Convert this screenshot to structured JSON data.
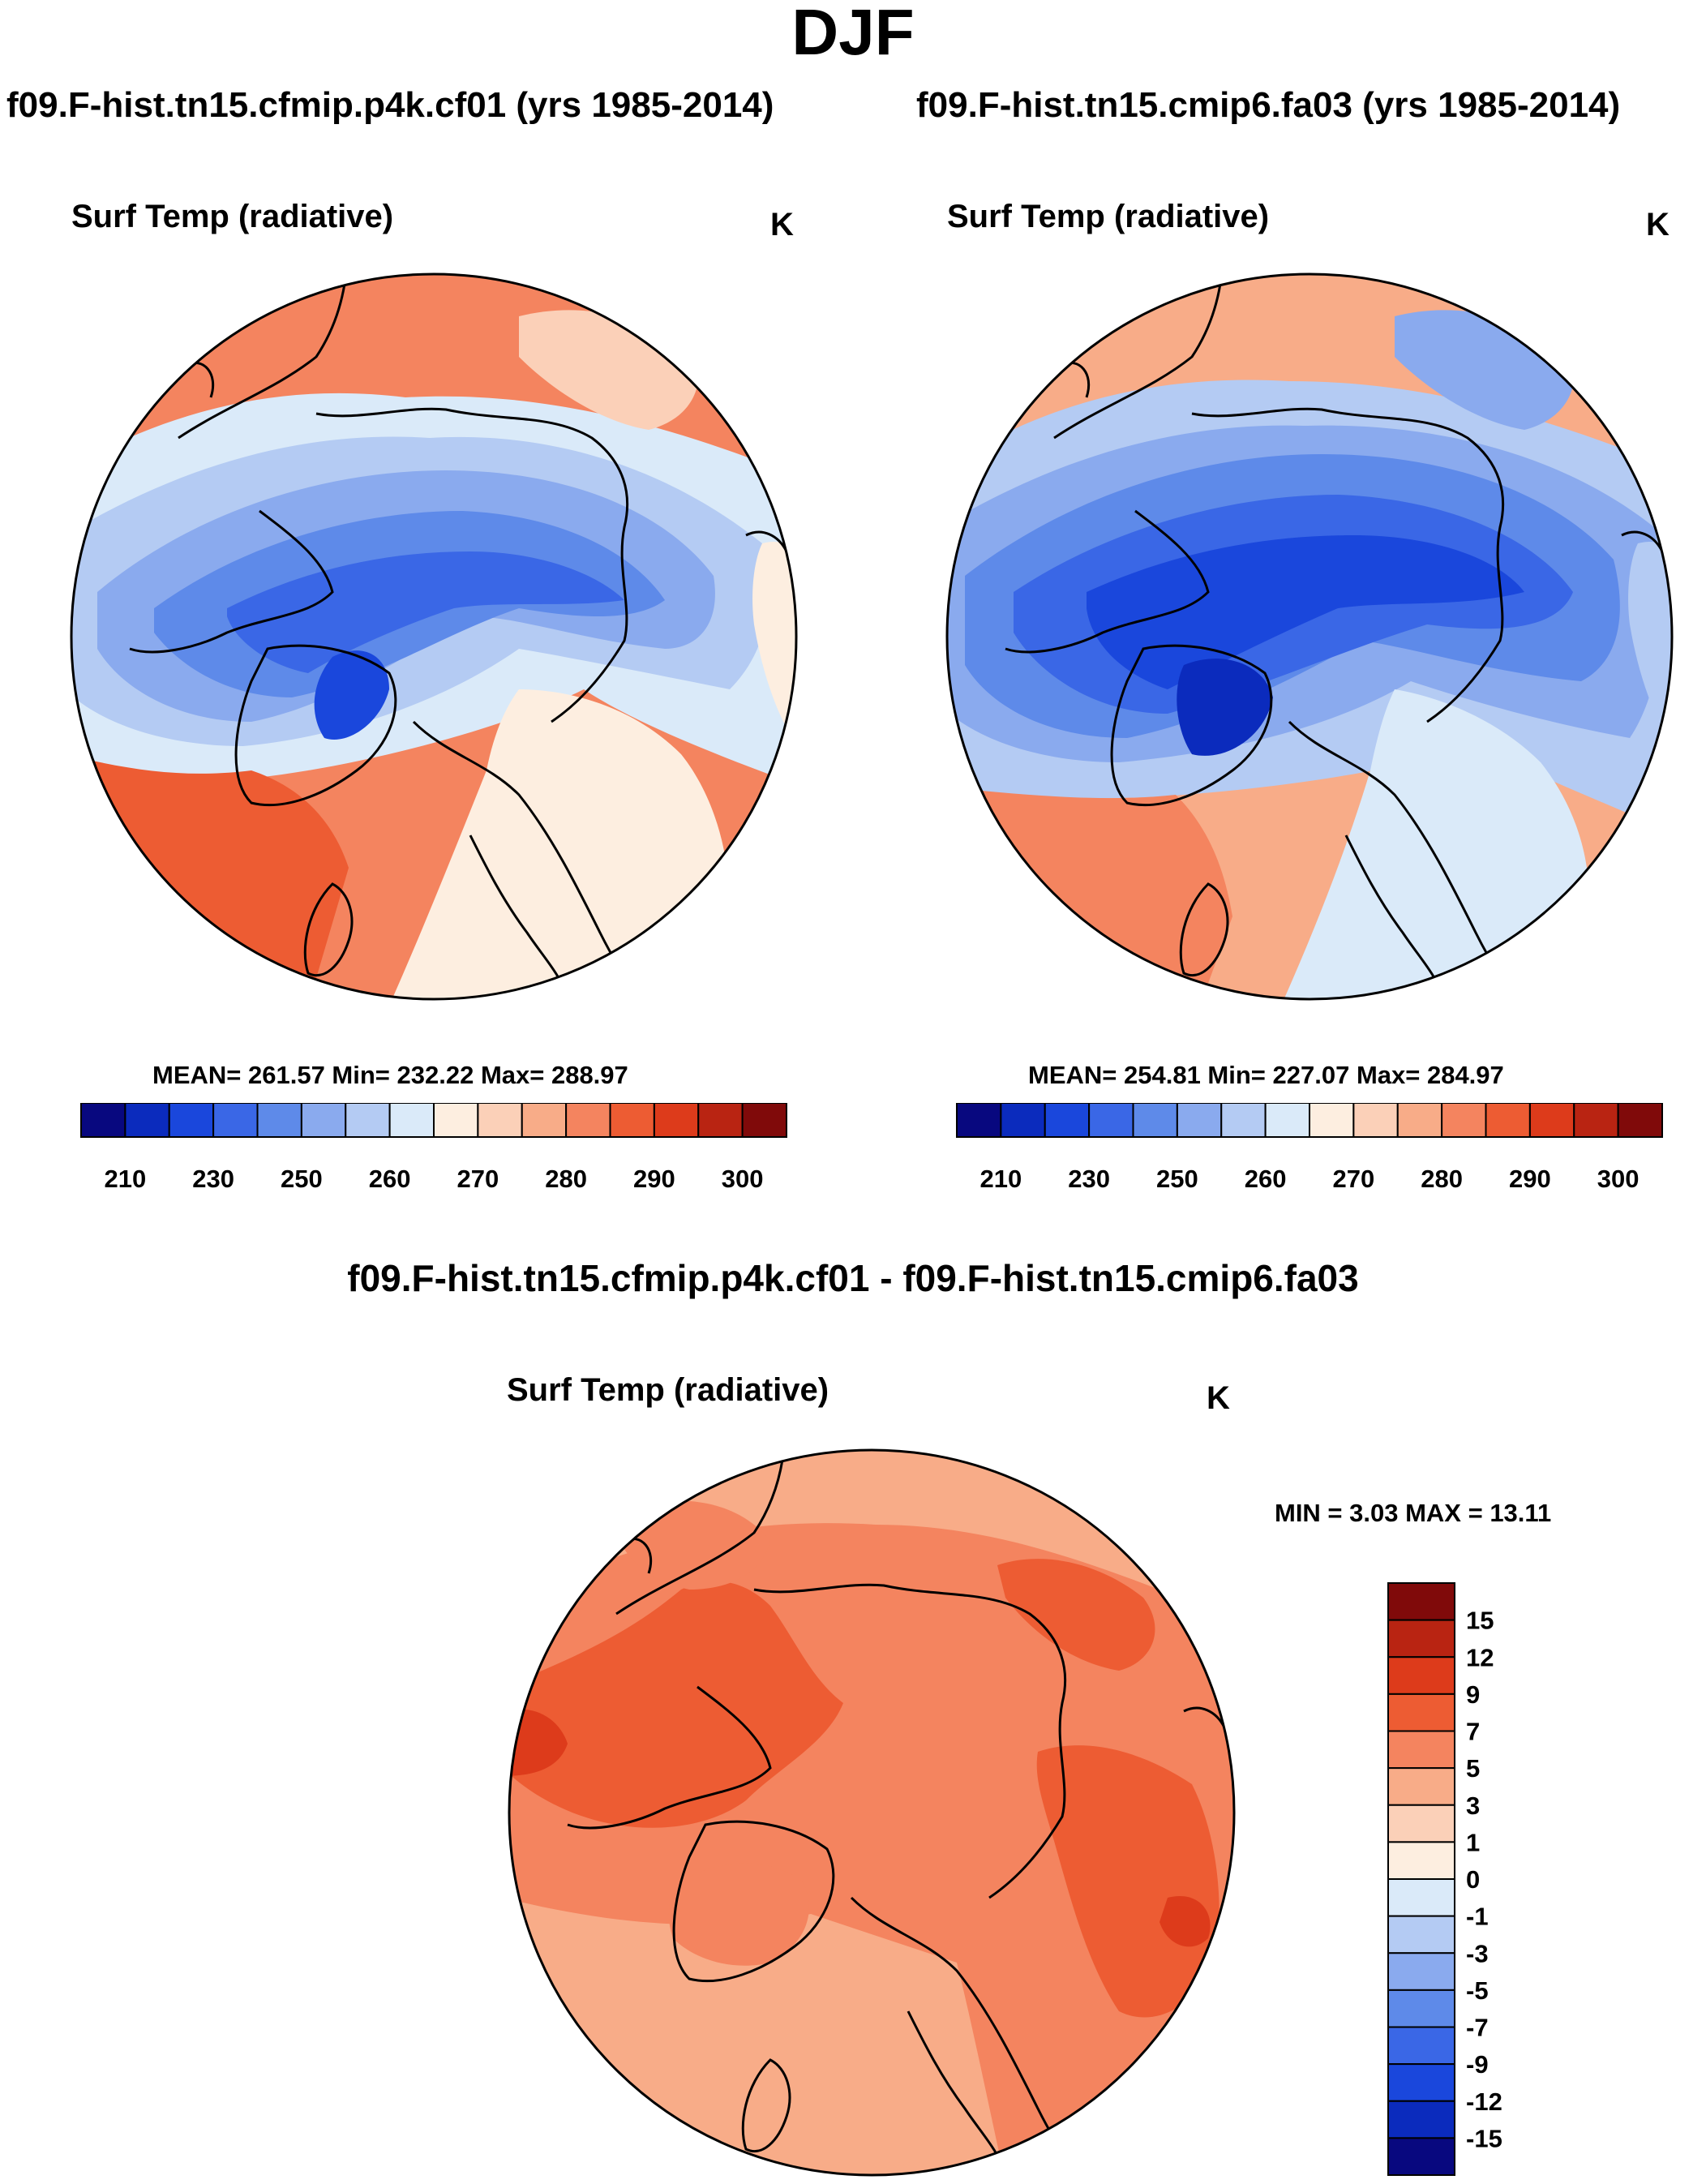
{
  "figure": {
    "season": "DJF",
    "left_case_title": "f09.F-hist.tn15.cfmip.p4k.cf01 (yrs 1985-2014)",
    "right_case_title": "f09.F-hist.tn15.cmip6.fa03 (yrs 1985-2014)",
    "diff_title": "f09.F-hist.tn15.cfmip.p4k.cf01 - f09.F-hist.tn15.cmip6.fa03"
  },
  "panels": {
    "left": {
      "variable": "Surf Temp (radiative)",
      "units": "K",
      "stats": "MEAN= 261.57  Min= 232.22  Max= 288.97"
    },
    "right": {
      "variable": "Surf Temp (radiative)",
      "units": "K",
      "stats": "MEAN= 254.81  Min= 227.07  Max= 284.97"
    },
    "diff": {
      "variable": "Surf Temp (radiative)",
      "units": "K",
      "stats": "MIN =   3.03 MAX =  13.11"
    }
  },
  "colorbars": {
    "absolute": {
      "colors": [
        "#08087f",
        "#0b2bbd",
        "#1a47dc",
        "#3a67e6",
        "#5e8ae9",
        "#8aaaee",
        "#b4cbf3",
        "#daeaf9",
        "#fdeee0",
        "#fbd0b8",
        "#f8ac88",
        "#f4845f",
        "#ed5c33",
        "#dd3b1b",
        "#b92412",
        "#800a0a"
      ],
      "tick_labels": [
        "210",
        "230",
        "250",
        "260",
        "270",
        "280",
        "290",
        "300"
      ]
    },
    "difference": {
      "colors": [
        "#08087f",
        "#0b2bbd",
        "#1a47dc",
        "#3a67e6",
        "#5e8ae9",
        "#8aaaee",
        "#b4cbf3",
        "#daeaf9",
        "#fdeee0",
        "#fbd0b8",
        "#f8ac88",
        "#f4845f",
        "#ed5c33",
        "#dd3b1b",
        "#b92412",
        "#800a0a"
      ],
      "tick_labels": [
        "15",
        "12",
        "9",
        "7",
        "5",
        "3",
        "1",
        "0",
        "-1",
        "-3",
        "-5",
        "-7",
        "-9",
        "-12",
        "-15"
      ]
    }
  }
}
